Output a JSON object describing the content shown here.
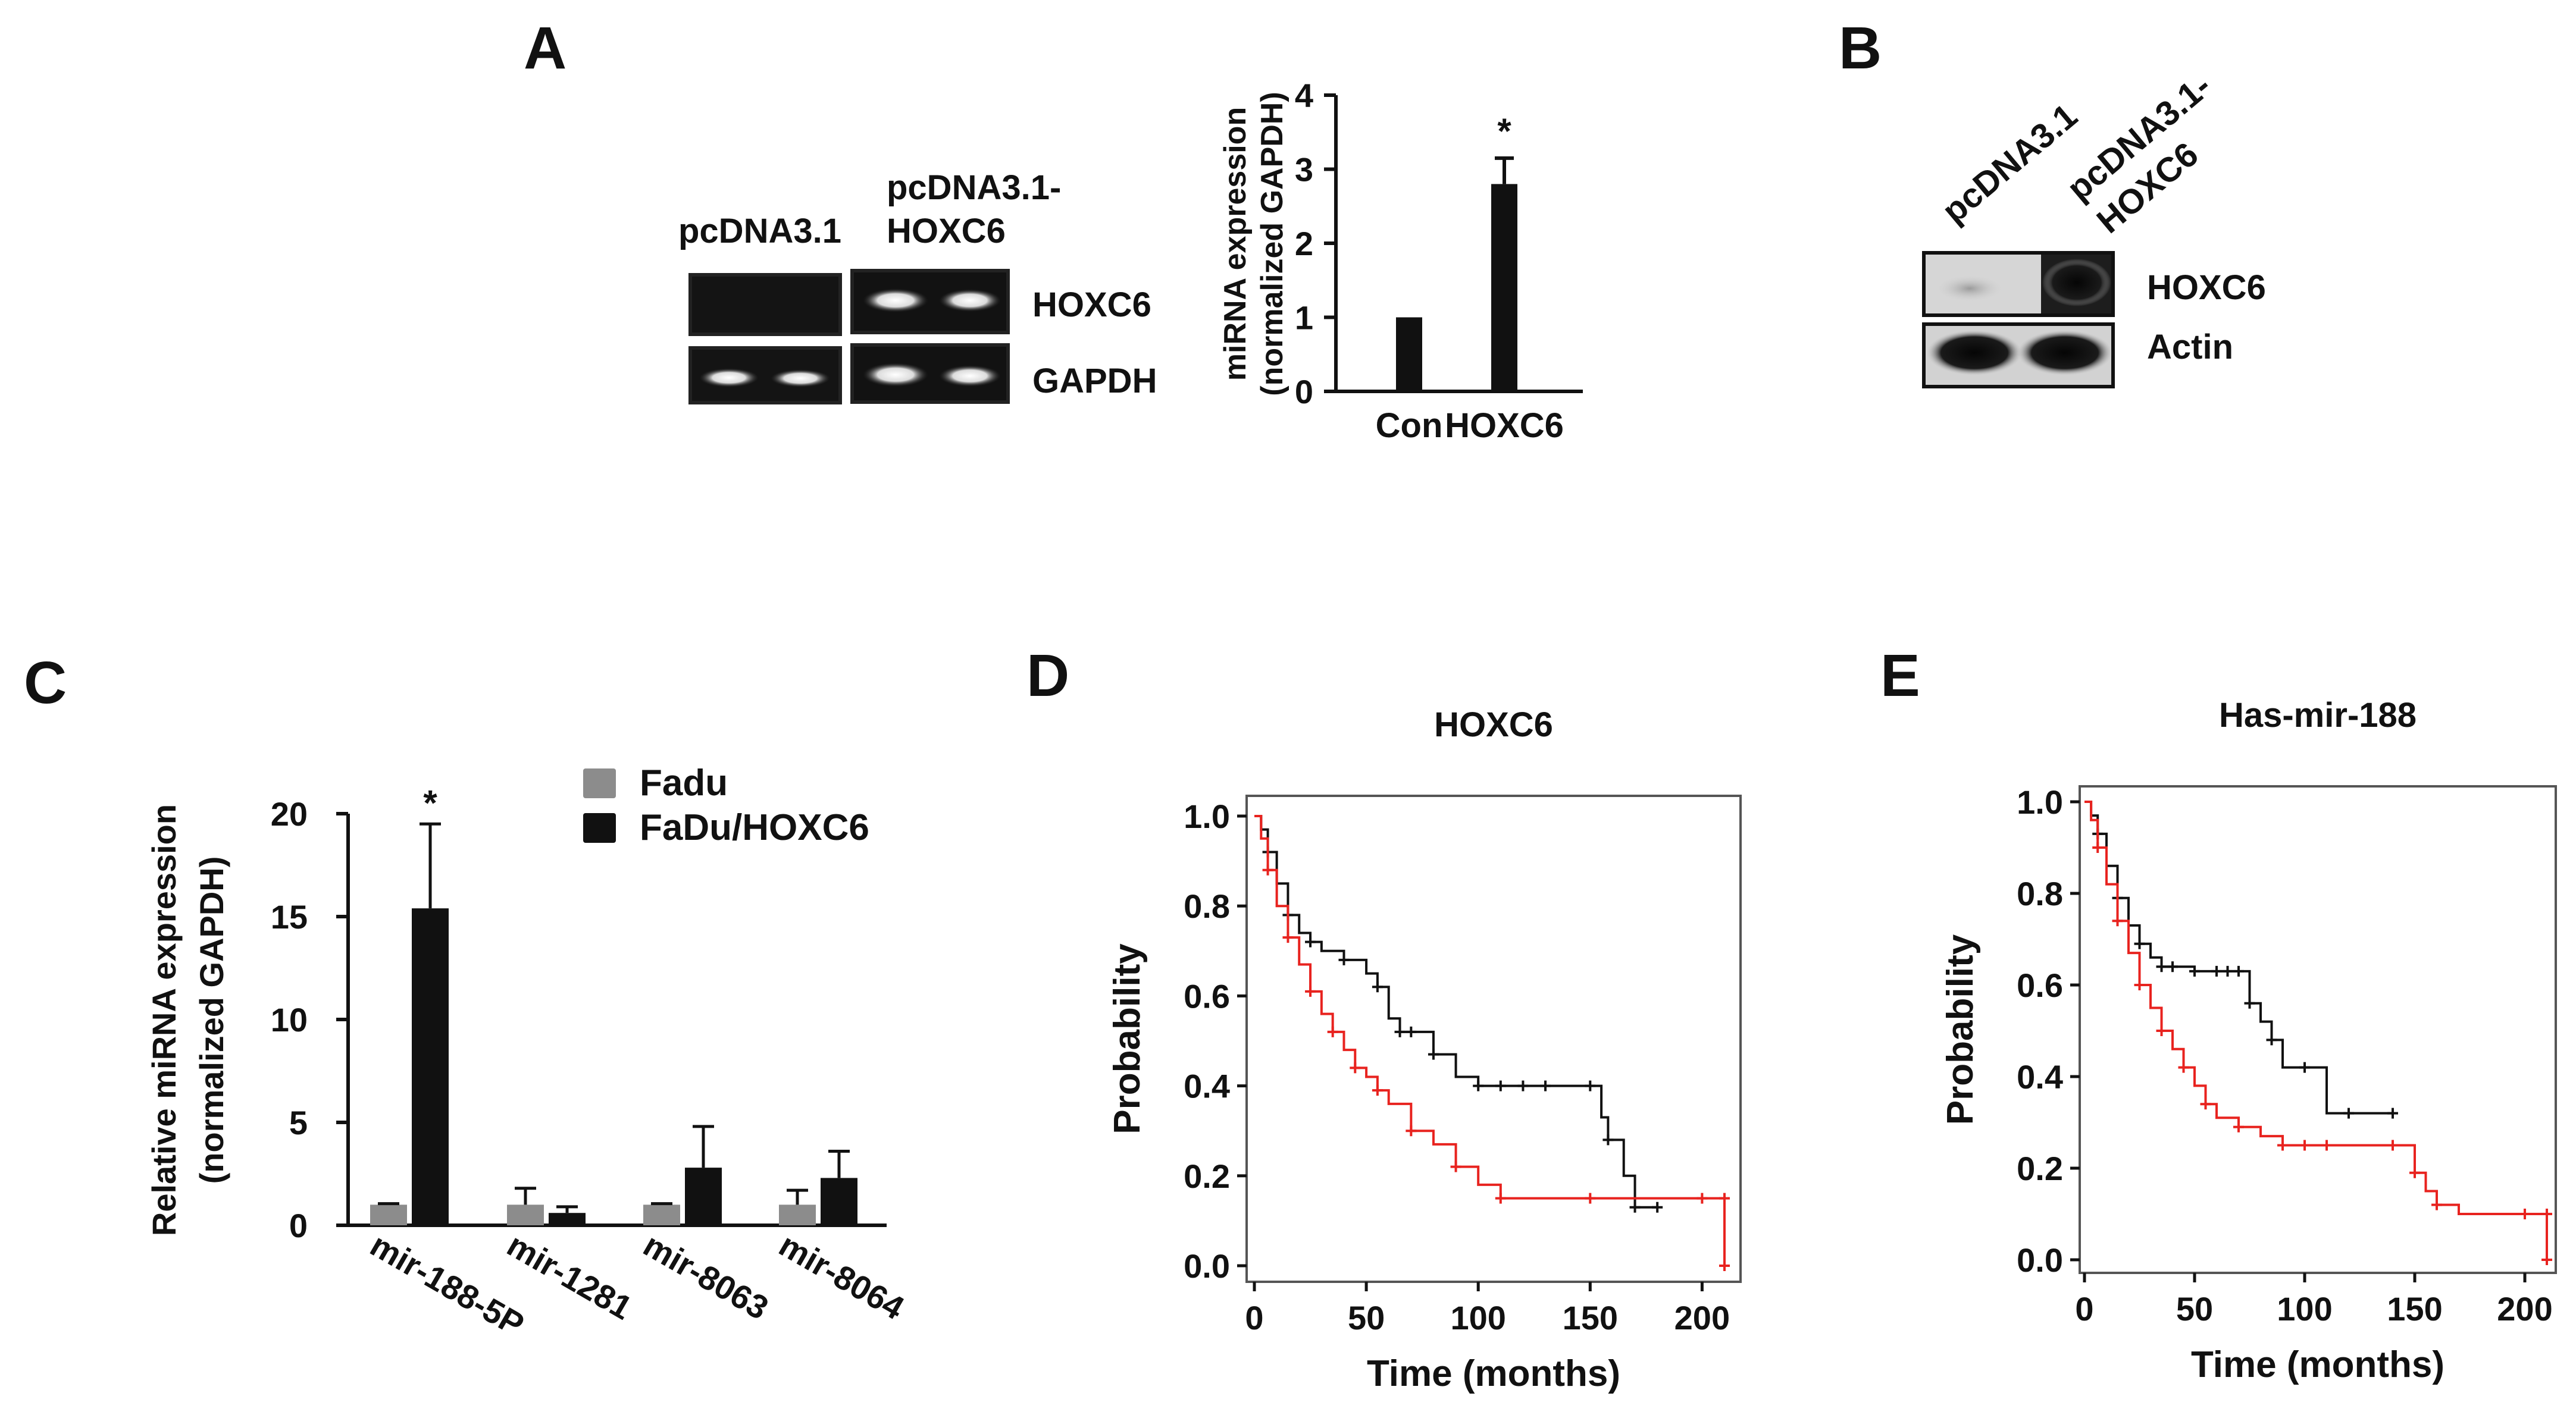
{
  "panels": {
    "A": {
      "label": "A",
      "gel": {
        "lane_labels": [
          "pcDNA3.1",
          "pcDNA3.1-",
          "HOXC6"
        ],
        "band_labels": [
          "HOXC6",
          "GAPDH"
        ]
      }
    },
    "B": {
      "label": "B",
      "lane_labels": [
        "pcDNA3.1",
        "pcDNA3.1-",
        "HOXC6"
      ],
      "band_labels": [
        "HOXC6",
        "Actin"
      ]
    },
    "C": {
      "label": "C"
    },
    "D": {
      "label": "D"
    },
    "E": {
      "label": "E"
    }
  },
  "chart_data": [
    {
      "id": "A-bar",
      "type": "bar",
      "categories": [
        "Con",
        "HOXC6"
      ],
      "values": [
        1.0,
        2.8
      ],
      "errors": [
        0,
        0.35
      ],
      "significance": [
        "",
        "*"
      ],
      "ylabel": [
        "miRNA expression",
        "(normalized GAPDH)"
      ],
      "ylim": [
        0,
        4
      ],
      "yticks": [
        0,
        1,
        2,
        3,
        4
      ],
      "bar_color": "#111111"
    },
    {
      "id": "C-bar",
      "type": "bar",
      "categories": [
        "mir-188-5P",
        "mir-1281",
        "mir-8063",
        "mir-8064"
      ],
      "series": [
        {
          "name": "Fadu",
          "values": [
            1.0,
            1.0,
            1.0,
            1.0
          ],
          "errors": [
            0.05,
            0.8,
            0.05,
            0.7
          ],
          "color": "#8c8c8c"
        },
        {
          "name": "FaDu/HOXC6",
          "values": [
            15.4,
            0.6,
            2.8,
            2.3
          ],
          "errors": [
            4.1,
            0.3,
            2.0,
            1.3
          ],
          "color": "#111111"
        }
      ],
      "significance": [
        "*",
        "",
        "",
        ""
      ],
      "ylabel": [
        "Relative miRNA expression",
        "(normalized GAPDH)"
      ],
      "ylim": [
        0,
        20
      ],
      "yticks": [
        0,
        5,
        10,
        15,
        20
      ],
      "legend_position": "top-right"
    },
    {
      "id": "D-km",
      "type": "line",
      "title": "HOXC6",
      "xlabel": "Time (months)",
      "ylabel": "Probability",
      "xlim": [
        0,
        210
      ],
      "ylim": [
        0,
        1.0
      ],
      "xticks": [
        0,
        50,
        100,
        150,
        200
      ],
      "yticks": [
        "0.0",
        "0.2",
        "0.4",
        "0.6",
        "0.8",
        "1.0"
      ],
      "series": [
        {
          "color": "#111111",
          "x": [
            0,
            3,
            6,
            10,
            15,
            20,
            25,
            30,
            40,
            50,
            55,
            60,
            65,
            70,
            80,
            90,
            100,
            110,
            120,
            130,
            150,
            155,
            158,
            165,
            170,
            180
          ],
          "y": [
            1.0,
            0.97,
            0.92,
            0.85,
            0.78,
            0.74,
            0.72,
            0.7,
            0.68,
            0.65,
            0.62,
            0.55,
            0.52,
            0.52,
            0.47,
            0.42,
            0.4,
            0.4,
            0.4,
            0.4,
            0.4,
            0.33,
            0.28,
            0.2,
            0.13,
            0.13
          ]
        },
        {
          "color": "#e8231f",
          "x": [
            0,
            3,
            6,
            10,
            15,
            20,
            25,
            30,
            35,
            40,
            45,
            50,
            55,
            60,
            70,
            80,
            90,
            100,
            110,
            150,
            200,
            210,
            210
          ],
          "y": [
            1.0,
            0.95,
            0.88,
            0.8,
            0.73,
            0.67,
            0.61,
            0.56,
            0.52,
            0.48,
            0.44,
            0.42,
            0.39,
            0.36,
            0.3,
            0.27,
            0.22,
            0.18,
            0.15,
            0.15,
            0.15,
            0.15,
            0.0
          ]
        }
      ]
    },
    {
      "id": "E-km",
      "type": "line",
      "title": "Has-mir-188",
      "xlabel": "Time (months)",
      "ylabel": "Probability",
      "xlim": [
        0,
        210
      ],
      "ylim": [
        0,
        1.0
      ],
      "xticks": [
        0,
        50,
        100,
        150,
        200
      ],
      "yticks": [
        "0.0",
        "0.2",
        "0.4",
        "0.6",
        "0.8",
        "1.0"
      ],
      "series": [
        {
          "color": "#111111",
          "x": [
            0,
            3,
            6,
            10,
            15,
            20,
            25,
            30,
            35,
            40,
            50,
            60,
            65,
            70,
            75,
            80,
            85,
            90,
            100,
            110,
            120,
            140
          ],
          "y": [
            1.0,
            0.97,
            0.93,
            0.86,
            0.79,
            0.73,
            0.69,
            0.66,
            0.64,
            0.64,
            0.63,
            0.63,
            0.63,
            0.63,
            0.56,
            0.52,
            0.48,
            0.42,
            0.42,
            0.32,
            0.32,
            0.32
          ]
        },
        {
          "color": "#e8231f",
          "x": [
            0,
            3,
            6,
            10,
            15,
            20,
            25,
            30,
            35,
            40,
            45,
            50,
            55,
            60,
            70,
            80,
            90,
            100,
            110,
            140,
            150,
            155,
            160,
            170,
            200,
            210,
            210
          ],
          "y": [
            1.0,
            0.96,
            0.9,
            0.82,
            0.74,
            0.67,
            0.6,
            0.55,
            0.5,
            0.46,
            0.42,
            0.38,
            0.34,
            0.31,
            0.29,
            0.27,
            0.25,
            0.25,
            0.25,
            0.25,
            0.19,
            0.15,
            0.12,
            0.1,
            0.1,
            0.1,
            0.0
          ]
        }
      ]
    }
  ]
}
